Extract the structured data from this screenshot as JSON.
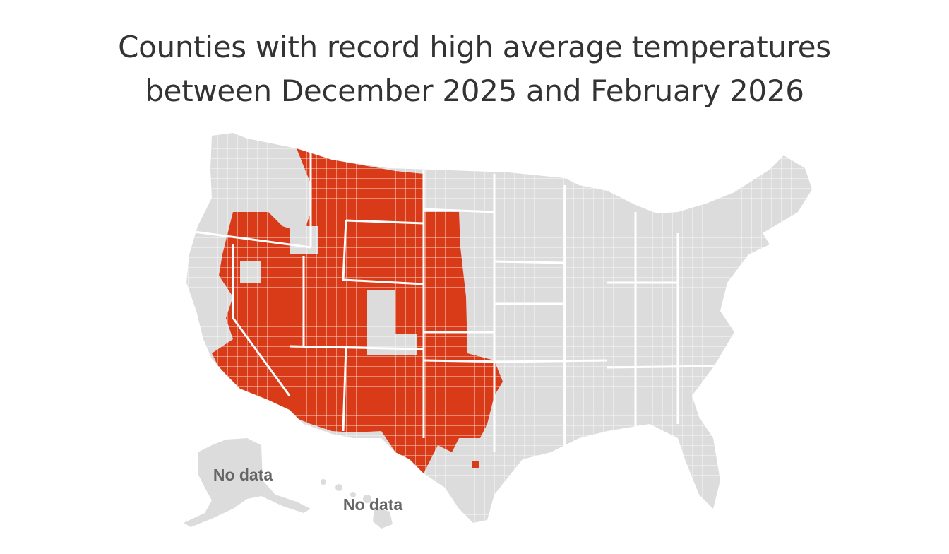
{
  "title": {
    "line1": "Counties with record high average temperatures",
    "line2": "between December 2025 and February 2026"
  },
  "map": {
    "region": "United States counties",
    "colors": {
      "record_high": "#d93a17",
      "not_record": "#dcdcdc",
      "borders": "#ffffff",
      "no_data_label": "#666666"
    },
    "record_high_states": [
      "California",
      "Nevada",
      "Oregon",
      "Idaho",
      "Montana",
      "Wyoming",
      "Utah",
      "Arizona",
      "Colorado",
      "New Mexico",
      "Nebraska",
      "Kansas",
      "Oklahoma",
      "Texas"
    ]
  },
  "labels": {
    "alaska": "No data",
    "hawaii": "No data"
  }
}
